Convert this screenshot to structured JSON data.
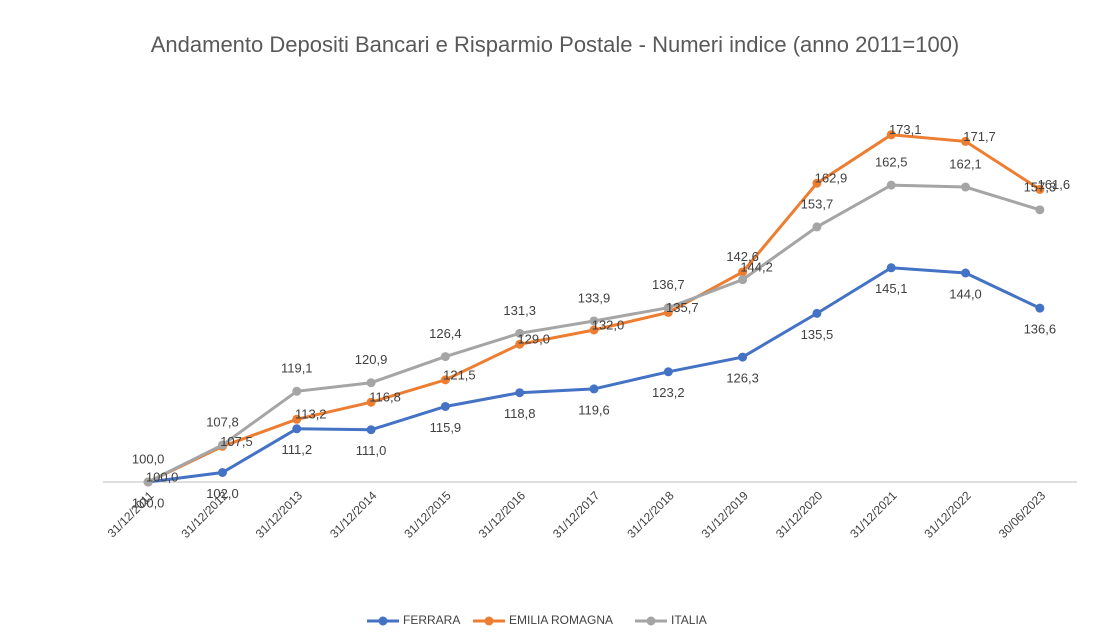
{
  "chart_data": {
    "type": "line",
    "title": "Andamento Depositi Bancari e Risparmio Postale - Numeri indice (anno 2011=100)",
    "categories": [
      "31/12/2011",
      "31/12/2012",
      "31/12/2013",
      "31/12/2014",
      "31/12/2015",
      "31/12/2016",
      "31/12/2017",
      "31/12/2018",
      "31/12/2019",
      "31/12/2020",
      "31/12/2021",
      "31/12/2022",
      "30/06/2023"
    ],
    "series": [
      {
        "name": "FERRARA",
        "color": "#4472c4",
        "values": [
          100.0,
          102.0,
          111.2,
          111.0,
          115.9,
          118.8,
          119.6,
          123.2,
          126.3,
          135.5,
          145.1,
          144.0,
          136.6
        ],
        "value_labels": [
          "100,0",
          "102,0",
          "111,2",
          "111,0",
          "115,9",
          "118,8",
          "119,6",
          "123,2",
          "126,3",
          "135,5",
          "145,1",
          "144,0",
          "136,6"
        ]
      },
      {
        "name": "EMILIA ROMAGNA",
        "color": "#ed7d31",
        "values": [
          100.0,
          107.5,
          113.2,
          116.8,
          121.5,
          129.0,
          132.0,
          135.7,
          144.2,
          162.9,
          173.1,
          171.7,
          161.6
        ],
        "value_labels": [
          "100,0",
          "107,5",
          "113,2",
          "116,8",
          "121,5",
          "129,0",
          "132,0",
          "135,7",
          "144,2",
          "162,9",
          "173,1",
          "171,7",
          "161,6"
        ]
      },
      {
        "name": "ITALIA",
        "color": "#a5a5a5",
        "values": [
          100.0,
          107.8,
          119.1,
          120.9,
          126.4,
          131.3,
          133.9,
          136.7,
          142.6,
          153.7,
          162.5,
          162.1,
          157.3
        ],
        "value_labels": [
          "100,0",
          "107,8",
          "119,1",
          "120,9",
          "126,4",
          "131,3",
          "133,9",
          "136,7",
          "142,6",
          "153,7",
          "162,5",
          "162,1",
          "157,3"
        ]
      }
    ],
    "ylim": [
      100,
      180
    ],
    "legend": "bottom"
  }
}
